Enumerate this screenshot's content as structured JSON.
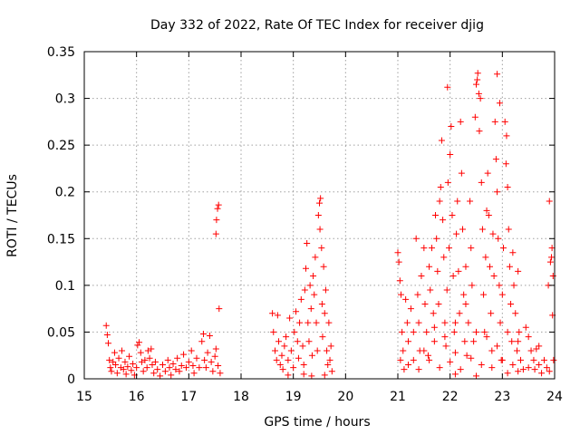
{
  "chart_data": {
    "type": "scatter",
    "title": "Day 332 of 2022, Rate Of TEC Index for receiver djig",
    "xlabel": "GPS time / hours",
    "ylabel": "ROTI / TECUs",
    "xlim": [
      15,
      24
    ],
    "ylim": [
      0,
      0.35
    ],
    "xticks": [
      "15",
      "16",
      "17",
      "18",
      "19",
      "20",
      "21",
      "22",
      "23",
      "24"
    ],
    "yticks": [
      "0",
      "0.05",
      "0.1",
      "0.15",
      "0.2",
      "0.25",
      "0.3",
      "0.35"
    ],
    "grid": true,
    "marker": "+",
    "color": "#ff0000",
    "series": [
      {
        "name": "ROTI",
        "points": [
          [
            15.42,
            0.057
          ],
          [
            15.44,
            0.047
          ],
          [
            15.46,
            0.038
          ],
          [
            15.48,
            0.02
          ],
          [
            15.5,
            0.012
          ],
          [
            15.52,
            0.008
          ],
          [
            15.55,
            0.018
          ],
          [
            15.58,
            0.028
          ],
          [
            15.6,
            0.015
          ],
          [
            15.63,
            0.006
          ],
          [
            15.66,
            0.022
          ],
          [
            15.7,
            0.012
          ],
          [
            15.72,
            0.03
          ],
          [
            15.75,
            0.01
          ],
          [
            15.78,
            0.018
          ],
          [
            15.8,
            0.005
          ],
          [
            15.83,
            0.013
          ],
          [
            15.86,
            0.024
          ],
          [
            15.9,
            0.009
          ],
          [
            15.93,
            0.016
          ],
          [
            15.96,
            0.004
          ],
          [
            16.0,
            0.012
          ],
          [
            16.02,
            0.036
          ],
          [
            16.05,
            0.039
          ],
          [
            16.08,
            0.028
          ],
          [
            16.1,
            0.018
          ],
          [
            16.13,
            0.008
          ],
          [
            16.16,
            0.02
          ],
          [
            16.2,
            0.012
          ],
          [
            16.22,
            0.03
          ],
          [
            16.25,
            0.022
          ],
          [
            16.28,
            0.032
          ],
          [
            16.3,
            0.015
          ],
          [
            16.33,
            0.006
          ],
          [
            16.36,
            0.018
          ],
          [
            16.4,
            0.01
          ],
          [
            16.45,
            0.003
          ],
          [
            16.5,
            0.015
          ],
          [
            16.55,
            0.008
          ],
          [
            16.6,
            0.02
          ],
          [
            16.63,
            0.012
          ],
          [
            16.66,
            0.004
          ],
          [
            16.7,
            0.016
          ],
          [
            16.75,
            0.01
          ],
          [
            16.78,
            0.022
          ],
          [
            16.82,
            0.008
          ],
          [
            16.86,
            0.014
          ],
          [
            16.9,
            0.026
          ],
          [
            16.95,
            0.012
          ],
          [
            17.0,
            0.018
          ],
          [
            17.05,
            0.03
          ],
          [
            17.08,
            0.014
          ],
          [
            17.1,
            0.006
          ],
          [
            17.15,
            0.022
          ],
          [
            17.2,
            0.012
          ],
          [
            17.25,
            0.04
          ],
          [
            17.28,
            0.048
          ],
          [
            17.3,
            0.02
          ],
          [
            17.33,
            0.012
          ],
          [
            17.36,
            0.028
          ],
          [
            17.4,
            0.046
          ],
          [
            17.43,
            0.018
          ],
          [
            17.46,
            0.008
          ],
          [
            17.5,
            0.024
          ],
          [
            17.52,
            0.155
          ],
          [
            17.53,
            0.17
          ],
          [
            17.55,
            0.182
          ],
          [
            17.57,
            0.186
          ],
          [
            17.58,
            0.075
          ],
          [
            17.56,
            0.014
          ],
          [
            17.52,
            0.032
          ],
          [
            17.6,
            0.006
          ],
          [
            18.6,
            0.07
          ],
          [
            18.62,
            0.05
          ],
          [
            18.65,
            0.03
          ],
          [
            18.68,
            0.02
          ],
          [
            18.7,
            0.068
          ],
          [
            18.72,
            0.04
          ],
          [
            18.75,
            0.015
          ],
          [
            18.78,
            0.025
          ],
          [
            18.8,
            0.01
          ],
          [
            18.83,
            0.035
          ],
          [
            18.86,
            0.045
          ],
          [
            18.9,
            0.02
          ],
          [
            18.93,
            0.065
          ],
          [
            18.96,
            0.03
          ],
          [
            19.0,
            0.012
          ],
          [
            19.02,
            0.05
          ],
          [
            19.05,
            0.072
          ],
          [
            19.08,
            0.04
          ],
          [
            19.1,
            0.022
          ],
          [
            19.12,
            0.06
          ],
          [
            19.15,
            0.085
          ],
          [
            19.18,
            0.035
          ],
          [
            19.2,
            0.015
          ],
          [
            19.22,
            0.095
          ],
          [
            19.24,
            0.118
          ],
          [
            19.26,
            0.145
          ],
          [
            19.28,
            0.06
          ],
          [
            19.3,
            0.04
          ],
          [
            19.32,
            0.1
          ],
          [
            19.34,
            0.075
          ],
          [
            19.36,
            0.025
          ],
          [
            19.38,
            0.11
          ],
          [
            19.4,
            0.09
          ],
          [
            19.42,
            0.13
          ],
          [
            19.44,
            0.06
          ],
          [
            19.46,
            0.03
          ],
          [
            19.48,
            0.175
          ],
          [
            19.5,
            0.188
          ],
          [
            19.51,
            0.16
          ],
          [
            19.52,
            0.193
          ],
          [
            19.54,
            0.14
          ],
          [
            19.55,
            0.08
          ],
          [
            19.56,
            0.045
          ],
          [
            19.58,
            0.12
          ],
          [
            19.6,
            0.07
          ],
          [
            19.62,
            0.095
          ],
          [
            19.64,
            0.03
          ],
          [
            19.66,
            0.015
          ],
          [
            19.68,
            0.06
          ],
          [
            19.7,
            0.02
          ],
          [
            19.72,
            0.035
          ],
          [
            19.74,
            0.008
          ],
          [
            19.2,
            0.005
          ],
          [
            19.35,
            0.003
          ],
          [
            18.9,
            0.004
          ],
          [
            19.6,
            0.004
          ],
          [
            21.0,
            0.135
          ],
          [
            21.02,
            0.125
          ],
          [
            21.04,
            0.105
          ],
          [
            21.06,
            0.09
          ],
          [
            21.08,
            0.05
          ],
          [
            21.1,
            0.03
          ],
          [
            21.12,
            0.01
          ],
          [
            21.15,
            0.085
          ],
          [
            21.18,
            0.06
          ],
          [
            21.2,
            0.04
          ],
          [
            21.25,
            0.075
          ],
          [
            21.3,
            0.02
          ],
          [
            21.35,
            0.15
          ],
          [
            21.38,
            0.09
          ],
          [
            21.4,
            0.06
          ],
          [
            21.42,
            0.03
          ],
          [
            21.45,
            0.11
          ],
          [
            21.5,
            0.14
          ],
          [
            21.52,
            0.08
          ],
          [
            21.55,
            0.05
          ],
          [
            21.58,
            0.025
          ],
          [
            21.6,
            0.12
          ],
          [
            21.62,
            0.095
          ],
          [
            21.65,
            0.14
          ],
          [
            21.68,
            0.07
          ],
          [
            21.7,
            0.04
          ],
          [
            21.72,
            0.175
          ],
          [
            21.74,
            0.15
          ],
          [
            21.76,
            0.115
          ],
          [
            21.78,
            0.08
          ],
          [
            21.8,
            0.19
          ],
          [
            21.82,
            0.205
          ],
          [
            21.84,
            0.255
          ],
          [
            21.86,
            0.17
          ],
          [
            21.88,
            0.13
          ],
          [
            21.9,
            0.06
          ],
          [
            21.92,
            0.035
          ],
          [
            21.94,
            0.095
          ],
          [
            21.95,
            0.312
          ],
          [
            21.96,
            0.21
          ],
          [
            21.98,
            0.14
          ],
          [
            22.0,
            0.24
          ],
          [
            22.02,
            0.27
          ],
          [
            22.04,
            0.175
          ],
          [
            22.06,
            0.11
          ],
          [
            22.08,
            0.05
          ],
          [
            22.1,
            0.028
          ],
          [
            22.12,
            0.155
          ],
          [
            22.14,
            0.19
          ],
          [
            22.16,
            0.115
          ],
          [
            22.18,
            0.07
          ],
          [
            22.2,
            0.275
          ],
          [
            22.22,
            0.22
          ],
          [
            22.24,
            0.16
          ],
          [
            22.26,
            0.09
          ],
          [
            22.28,
            0.04
          ],
          [
            22.3,
            0.12
          ],
          [
            22.32,
            0.025
          ],
          [
            22.35,
            0.06
          ],
          [
            22.38,
            0.19
          ],
          [
            22.4,
            0.14
          ],
          [
            22.42,
            0.1
          ],
          [
            22.45,
            0.04
          ],
          [
            22.48,
            0.28
          ],
          [
            22.5,
            0.315
          ],
          [
            22.52,
            0.32
          ],
          [
            22.53,
            0.327
          ],
          [
            22.55,
            0.305
          ],
          [
            22.56,
            0.265
          ],
          [
            22.58,
            0.3
          ],
          [
            22.6,
            0.21
          ],
          [
            22.62,
            0.16
          ],
          [
            22.64,
            0.09
          ],
          [
            22.66,
            0.05
          ],
          [
            22.68,
            0.13
          ],
          [
            22.7,
            0.18
          ],
          [
            22.72,
            0.22
          ],
          [
            22.74,
            0.175
          ],
          [
            22.76,
            0.12
          ],
          [
            22.78,
            0.07
          ],
          [
            22.8,
            0.03
          ],
          [
            22.82,
            0.155
          ],
          [
            22.84,
            0.11
          ],
          [
            22.86,
            0.275
          ],
          [
            22.88,
            0.235
          ],
          [
            22.9,
            0.2
          ],
          [
            22.92,
            0.15
          ],
          [
            22.94,
            0.1
          ],
          [
            22.96,
            0.06
          ],
          [
            22.98,
            0.02
          ],
          [
            22.9,
            0.326
          ],
          [
            22.95,
            0.295
          ],
          [
            23.0,
            0.09
          ],
          [
            23.02,
            0.14
          ],
          [
            23.05,
            0.275
          ],
          [
            23.07,
            0.23
          ],
          [
            23.08,
            0.26
          ],
          [
            23.1,
            0.205
          ],
          [
            23.12,
            0.16
          ],
          [
            23.14,
            0.12
          ],
          [
            23.16,
            0.08
          ],
          [
            23.18,
            0.04
          ],
          [
            23.2,
            0.135
          ],
          [
            23.22,
            0.1
          ],
          [
            23.25,
            0.07
          ],
          [
            23.28,
            0.03
          ],
          [
            23.3,
            0.115
          ],
          [
            23.32,
            0.05
          ],
          [
            23.35,
            0.02
          ],
          [
            23.4,
            0.01
          ],
          [
            23.45,
            0.055
          ],
          [
            23.5,
            0.045
          ],
          [
            23.55,
            0.03
          ],
          [
            23.6,
            0.02
          ],
          [
            23.62,
            0.01
          ],
          [
            23.65,
            0.032
          ],
          [
            23.7,
            0.015
          ],
          [
            23.75,
            0.006
          ],
          [
            23.8,
            0.02
          ],
          [
            23.85,
            0.012
          ],
          [
            23.88,
            0.1
          ],
          [
            23.9,
            0.19
          ],
          [
            23.92,
            0.125
          ],
          [
            23.94,
            0.13
          ],
          [
            23.95,
            0.14
          ],
          [
            23.96,
            0.068
          ],
          [
            23.97,
            0.11
          ],
          [
            23.98,
            0.02
          ],
          [
            21.05,
            0.02
          ],
          [
            21.2,
            0.015
          ],
          [
            21.4,
            0.01
          ],
          [
            21.6,
            0.02
          ],
          [
            21.8,
            0.012
          ],
          [
            22.0,
            0.018
          ],
          [
            22.2,
            0.01
          ],
          [
            22.4,
            0.022
          ],
          [
            22.6,
            0.015
          ],
          [
            22.8,
            0.012
          ],
          [
            23.0,
            0.02
          ],
          [
            23.1,
            0.006
          ],
          [
            23.2,
            0.015
          ],
          [
            23.3,
            0.008
          ],
          [
            22.1,
            0.005
          ],
          [
            22.5,
            0.003
          ],
          [
            21.3,
            0.05
          ],
          [
            21.5,
            0.03
          ],
          [
            21.7,
            0.055
          ],
          [
            21.9,
            0.045
          ],
          [
            22.1,
            0.06
          ],
          [
            22.3,
            0.08
          ],
          [
            22.5,
            0.05
          ],
          [
            22.7,
            0.045
          ],
          [
            22.9,
            0.035
          ],
          [
            23.1,
            0.05
          ],
          [
            23.3,
            0.04
          ],
          [
            23.5,
            0.012
          ],
          [
            23.7,
            0.035
          ],
          [
            23.9,
            0.008
          ]
        ]
      }
    ]
  }
}
